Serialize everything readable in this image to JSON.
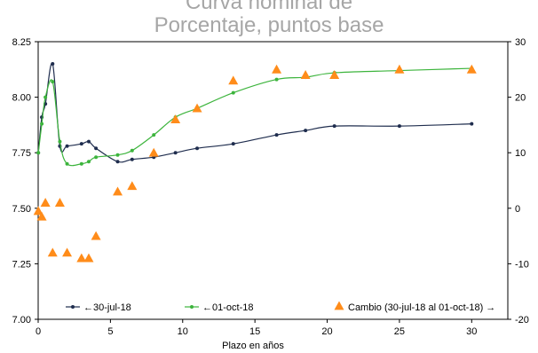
{
  "chart_data": {
    "type": "line",
    "title_partial": "Curva nominal de",
    "subtitle": "Porcentaje, puntos base",
    "xlabel": "Plazo en años",
    "xlim": [
      0,
      32.5
    ],
    "xticks": [
      "0",
      "5",
      "10",
      "15",
      "20",
      "25",
      "30"
    ],
    "xtick_values": [
      0,
      5,
      10,
      15,
      20,
      25,
      30
    ],
    "ylim_left": [
      7.0,
      8.25
    ],
    "yticks_left": [
      "7.00",
      "7.25",
      "7.50",
      "7.75",
      "8.00",
      "8.25"
    ],
    "ytick_left_values": [
      7.0,
      7.25,
      7.5,
      7.75,
      8.0,
      8.25
    ],
    "ylim_right": [
      -20,
      30
    ],
    "yticks_right": [
      "-20",
      "-10",
      "0",
      "10",
      "20",
      "30"
    ],
    "ytick_right_values": [
      -20,
      -10,
      0,
      10,
      20,
      30
    ],
    "legend_position": "bottom",
    "series": [
      {
        "name": "←30-jul-18",
        "axis": "left",
        "style": "line-dot",
        "color": "#1f2d4e",
        "x": [
          0.01,
          0.25,
          0.5,
          1,
          1.5,
          2,
          3,
          3.5,
          4,
          5.5,
          6.5,
          8,
          9.5,
          11,
          13.5,
          16.5,
          18.5,
          20.5,
          25,
          30
        ],
        "y": [
          7.75,
          7.91,
          7.97,
          8.15,
          7.78,
          7.78,
          7.79,
          7.8,
          7.77,
          7.71,
          7.72,
          7.73,
          7.75,
          7.77,
          7.79,
          7.83,
          7.85,
          7.87,
          7.87,
          7.88
        ]
      },
      {
        "name": "←01-oct-18",
        "axis": "left",
        "style": "line-dot",
        "color": "#3cb43c",
        "x": [
          0.01,
          0.25,
          0.5,
          1,
          1.5,
          2,
          3,
          3.5,
          4,
          5.5,
          6.5,
          8,
          9.5,
          11,
          13.5,
          16.5,
          18.5,
          20.5,
          25,
          30
        ],
        "y": [
          7.75,
          7.88,
          8.0,
          8.07,
          7.8,
          7.7,
          7.7,
          7.71,
          7.73,
          7.74,
          7.76,
          7.83,
          7.91,
          7.95,
          8.02,
          8.08,
          8.09,
          8.11,
          8.12,
          8.13
        ]
      },
      {
        "name": "Cambio (30-jul-18 al 01-oct-18) →",
        "axis": "right",
        "style": "triangle",
        "color": "#ff8c1a",
        "x": [
          0.01,
          0.25,
          0.5,
          1,
          1.5,
          2,
          3,
          3.5,
          4,
          5.5,
          6.5,
          8,
          9.5,
          11,
          13.5,
          16.5,
          18.5,
          20.5,
          25,
          30
        ],
        "y": [
          -0.5,
          -1.5,
          1,
          -8,
          1,
          -8,
          -9,
          -9,
          -5,
          3,
          4,
          10,
          16,
          18,
          23,
          25,
          24,
          24,
          25,
          25
        ]
      }
    ]
  }
}
